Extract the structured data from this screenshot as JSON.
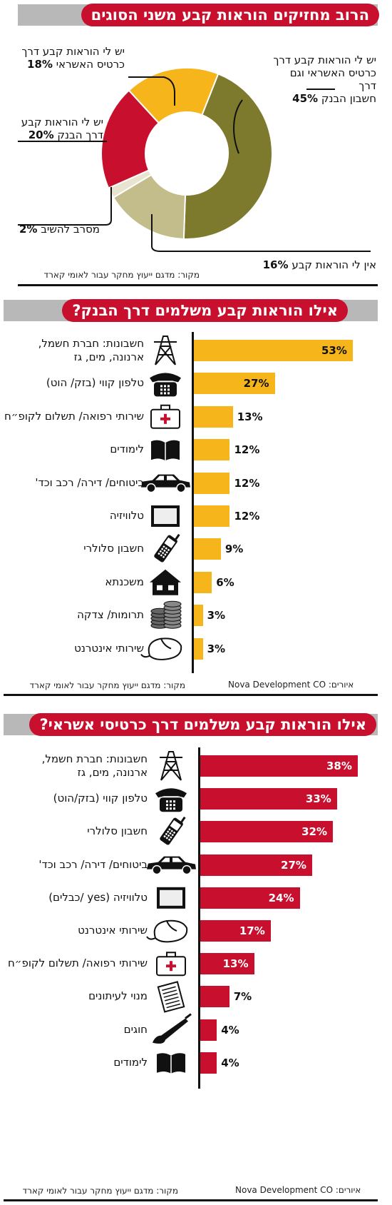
{
  "section1": {
    "title": "הרוב מחזיקים הוראות קבע משני הסוגים",
    "source": "מקור: מדגם ייעוץ מחקר עבור לאומי קארד",
    "chart_data": {
      "type": "pie",
      "donut": true,
      "slices": [
        {
          "label": "יש לי הוראות קבע דרך כרטיס האשראי וגם דרך חשבון הבנק",
          "value": 45,
          "display": "45%",
          "color": "#7d7a2e"
        },
        {
          "label": "אין לי הוראות קבע",
          "value": 16,
          "display": "16%",
          "color": "#c2bd8a"
        },
        {
          "label": "מסרב להשיב",
          "value": 2,
          "display": "2%",
          "color": "#e8e4cf"
        },
        {
          "label": "יש לי הוראות קבע דרך הבנק",
          "value": 20,
          "display": "20%",
          "color": "#c8102e"
        },
        {
          "label": "יש לי הוראות קבע דרך כרטיס האשראי",
          "value": 18,
          "display": "18%",
          "color": "#f5b51b"
        }
      ]
    },
    "callouts": {
      "c1": {
        "line1": "יש לי הוראות קבע דרך",
        "line2": "כרטיס האשראי וגם דרך",
        "line3": "חשבון הבנק",
        "pct": "45%"
      },
      "c2": {
        "line1": "אין לי הוראות קבע",
        "pct": "16%"
      },
      "c3": {
        "line1": "מסרב להשיב",
        "pct": "2%"
      },
      "c4": {
        "line1": "יש לי הוראות קבע",
        "line2": "דרך הבנק",
        "pct": "20%"
      },
      "c5": {
        "line1": "יש לי הוראות קבע דרך",
        "line2": "כרטיס האשראי",
        "pct": "18%"
      }
    }
  },
  "section2": {
    "title": "אילו הוראות קבע משלמים דרך הבנק?",
    "source": "מקור: מדגם ייעוץ מחקר עבור לאומי קארד",
    "credit": "Nova Development CO :איורים",
    "chart_data": {
      "type": "bar",
      "orientation": "horizontal",
      "xlim": [
        0,
        53
      ],
      "color": "#f5b51b",
      "categories": [
        {
          "line1": "חשבונות: חברת חשמל,",
          "line2": "ארנונה, מים, גז",
          "icon": "power-tower-icon"
        },
        {
          "line1": "טלפון קווי (בזק/ הוט)",
          "icon": "telephone-icon"
        },
        {
          "line1": "שירותי רפואה/ תשלום לקופ״ח",
          "icon": "medical-kit-icon"
        },
        {
          "line1": "לימודים",
          "icon": "book-icon"
        },
        {
          "line1": "ביטוחים/ דירה/ רכב וכד'",
          "icon": "car-icon"
        },
        {
          "line1": "טלוויזיה",
          "icon": "tv-icon"
        },
        {
          "line1": "חשבון סלולרי",
          "icon": "cellphone-icon"
        },
        {
          "line1": "משכנתא",
          "icon": "house-icon"
        },
        {
          "line1": "תרומות/ צדקה",
          "icon": "coins-icon"
        },
        {
          "line1": "שירותי אינטרנט",
          "icon": "mouse-icon"
        }
      ],
      "values": [
        53,
        27,
        13,
        12,
        12,
        12,
        9,
        6,
        3,
        3
      ],
      "labels": [
        "53%",
        "27%",
        "13%",
        "12%",
        "12%",
        "12%",
        "9%",
        "6%",
        "3%",
        "3%"
      ]
    }
  },
  "section3": {
    "title": "אילו הוראות קבע משלמים דרך כרטיסי אשראי?",
    "source": "מקור: מדגם ייעוץ מחקר עבור לאומי קארד",
    "credit": "Nova Development CO :איורים",
    "chart_data": {
      "type": "bar",
      "orientation": "horizontal",
      "xlim": [
        0,
        38
      ],
      "color": "#c8102e",
      "categories": [
        {
          "line1": "חשבונות: חברת חשמל,",
          "line2": "ארנונה, מים, גז",
          "icon": "power-tower-icon"
        },
        {
          "line1": "טלפון קווי (בזק/הוט)",
          "icon": "telephone-icon"
        },
        {
          "line1": "חשבון סלולרי",
          "icon": "cellphone-icon"
        },
        {
          "line1": "ביטוחים/ דירה/ רכב וכד'",
          "icon": "car-icon"
        },
        {
          "line1": "טלוויזיה (yes /כבלים)",
          "icon": "tv-icon"
        },
        {
          "line1": "שירותי אינטרנט",
          "icon": "mouse-icon"
        },
        {
          "line1": "שירותי רפואה/ תשלום לקופ״ח",
          "icon": "medical-kit-icon"
        },
        {
          "line1": "מנוי לעיתונים",
          "icon": "newspaper-icon"
        },
        {
          "line1": "חוגים",
          "icon": "paintbrush-icon"
        },
        {
          "line1": "לימודים",
          "icon": "book-icon"
        }
      ],
      "values": [
        38,
        33,
        32,
        27,
        24,
        17,
        13,
        7,
        4,
        4
      ],
      "labels": [
        "38%",
        "33%",
        "32%",
        "27%",
        "24%",
        "17%",
        "13%",
        "7%",
        "4%",
        "4%"
      ]
    }
  }
}
